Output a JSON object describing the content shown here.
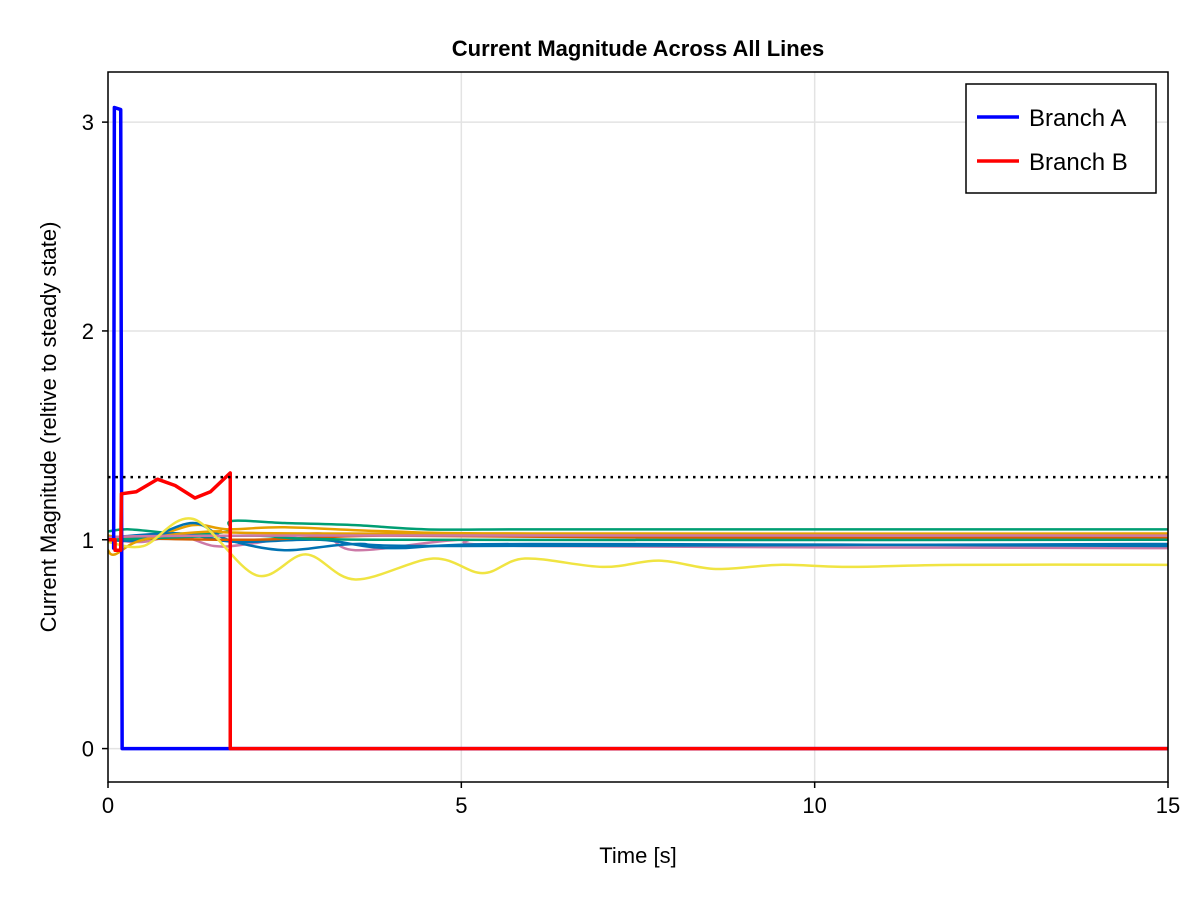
{
  "chart_data": {
    "type": "line",
    "title": "Current Magnitude Across All Lines",
    "xlabel": "Time [s]",
    "ylabel": "Current Magnitude (reltive to steady state)",
    "xlim": [
      0,
      15
    ],
    "ylim": [
      -0.16,
      3.24
    ],
    "xticks": [
      "0",
      "5",
      "10",
      "15"
    ],
    "yticks": [
      "0",
      "1",
      "2",
      "3"
    ],
    "grid": true,
    "legend_position": "top-right",
    "reference_line": {
      "y": 1.3,
      "style": "dotted",
      "color": "#000000"
    },
    "series": [
      {
        "color": "#009E73",
        "points": [
          [
            0,
            1.04
          ],
          [
            0.3,
            1.05
          ],
          [
            1,
            1.03
          ],
          [
            1.7,
            1.04
          ],
          [
            1.75,
            1.09
          ],
          [
            2.5,
            1.08
          ],
          [
            3.5,
            1.07
          ],
          [
            4.5,
            1.05
          ],
          [
            6,
            1.05
          ],
          [
            9,
            1.05
          ],
          [
            15,
            1.05
          ]
        ]
      },
      {
        "color": "#E69F00",
        "points": [
          [
            0,
            1.02
          ],
          [
            0.5,
            1.0
          ],
          [
            1.2,
            1.07
          ],
          [
            1.7,
            1.05
          ],
          [
            2.5,
            1.06
          ],
          [
            4,
            1.04
          ],
          [
            6,
            1.03
          ],
          [
            15,
            1.03
          ]
        ]
      },
      {
        "color": "#CC79A7",
        "points": [
          [
            0,
            1.0
          ],
          [
            0.5,
            0.99
          ],
          [
            1,
            1.02
          ],
          [
            1.5,
            0.97
          ],
          [
            2,
            0.98
          ],
          [
            3,
            1.03
          ],
          [
            3.5,
            0.95
          ],
          [
            5,
            1.0
          ],
          [
            6,
            0.97
          ],
          [
            15,
            0.96
          ]
        ]
      },
      {
        "color": "#0072B2",
        "points": [
          [
            0,
            1.0
          ],
          [
            0.5,
            1.0
          ],
          [
            1.2,
            1.08
          ],
          [
            1.7,
            1.0
          ],
          [
            2.5,
            0.95
          ],
          [
            3.5,
            0.98
          ],
          [
            5,
            0.97
          ],
          [
            15,
            0.98
          ]
        ]
      },
      {
        "color": "#0072B2",
        "points": [
          [
            0,
            1.01
          ],
          [
            1,
            1.03
          ],
          [
            1.8,
            0.99
          ],
          [
            3,
            1.0
          ],
          [
            4,
            0.96
          ],
          [
            6,
            0.98
          ],
          [
            15,
            0.97
          ]
        ]
      },
      {
        "color": "#D55E00",
        "points": [
          [
            0,
            1.01
          ],
          [
            2,
            1.0
          ],
          [
            4,
            1.02
          ],
          [
            8,
            1.01
          ],
          [
            15,
            1.01
          ]
        ]
      },
      {
        "color": "#009E73",
        "points": [
          [
            0,
            1.0
          ],
          [
            2,
            1.02
          ],
          [
            4,
            1.0
          ],
          [
            15,
            1.0
          ]
        ]
      },
      {
        "color": "#E69F00",
        "points": [
          [
            0,
            0.95
          ],
          [
            0.1,
            0.93
          ],
          [
            0.5,
            1.0
          ],
          [
            1.5,
            1.04
          ],
          [
            3,
            1.03
          ],
          [
            15,
            1.02
          ]
        ]
      },
      {
        "color": "#CC79A7",
        "points": [
          [
            0,
            1.01
          ],
          [
            2,
            1.02
          ],
          [
            15,
            1.02
          ]
        ]
      },
      {
        "color": "#F0E442",
        "points": [
          [
            0,
            0.99
          ],
          [
            0.5,
            0.97
          ],
          [
            1.2,
            1.1
          ],
          [
            2.1,
            0.83
          ],
          [
            2.8,
            0.93
          ],
          [
            3.5,
            0.81
          ],
          [
            4.6,
            0.91
          ],
          [
            5.3,
            0.84
          ],
          [
            5.9,
            0.91
          ],
          [
            7,
            0.87
          ],
          [
            7.8,
            0.9
          ],
          [
            8.6,
            0.86
          ],
          [
            9.5,
            0.88
          ],
          [
            10.5,
            0.87
          ],
          [
            12,
            0.88
          ],
          [
            15,
            0.88
          ]
        ]
      },
      {
        "name": "Branch A",
        "color": "#0000FF",
        "step": true,
        "points": [
          [
            0,
            1.0
          ],
          [
            0.08,
            1.0
          ],
          [
            0.08,
            0.96
          ],
          [
            0.09,
            3.07
          ],
          [
            0.18,
            3.06
          ],
          [
            0.2,
            0
          ],
          [
            15,
            0
          ]
        ]
      },
      {
        "name": "Branch B",
        "color": "#FF0000",
        "step": true,
        "points": [
          [
            0,
            1.0
          ],
          [
            0.1,
            1.0
          ],
          [
            0.1,
            0.95
          ],
          [
            0.18,
            0.95
          ],
          [
            0.19,
            1.22
          ],
          [
            0.4,
            1.23
          ],
          [
            0.7,
            1.29
          ],
          [
            0.95,
            1.26
          ],
          [
            1.23,
            1.2
          ],
          [
            1.45,
            1.23
          ],
          [
            1.73,
            1.32
          ],
          [
            1.73,
            0
          ],
          [
            15,
            0
          ]
        ]
      }
    ]
  }
}
